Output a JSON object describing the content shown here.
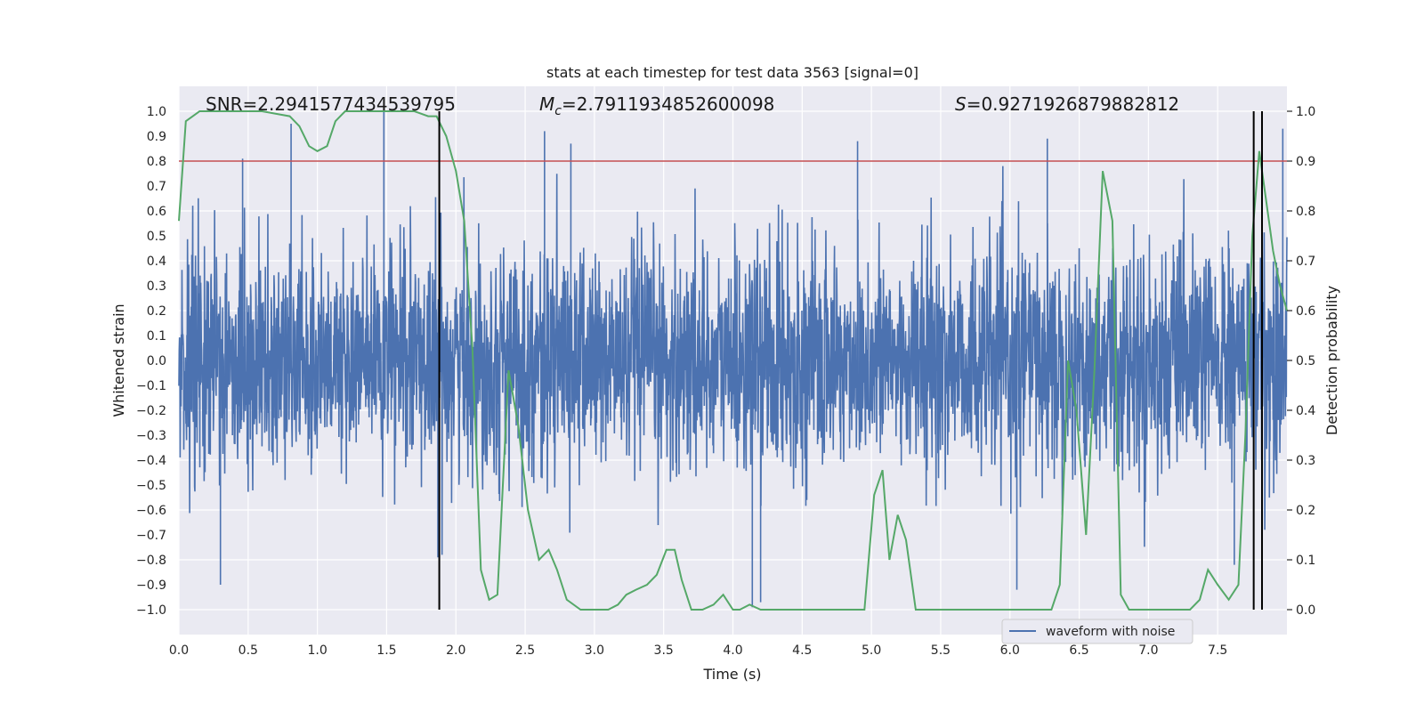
{
  "chart_data": {
    "type": "line",
    "title": "stats at each timestep for test data 3563 [signal=0]",
    "xlabel": "Time (s)",
    "ylabel": "Whitened strain",
    "ylabel_right": "Detection probability",
    "xlim": [
      0.0,
      8.0
    ],
    "ylim": [
      -1.1,
      1.1
    ],
    "ylim_right": [
      -0.05,
      1.05
    ],
    "x_ticks": [
      "0.0",
      "0.5",
      "1.0",
      "1.5",
      "2.0",
      "2.5",
      "3.0",
      "3.5",
      "4.0",
      "4.5",
      "5.0",
      "5.5",
      "6.0",
      "6.5",
      "7.0",
      "7.5"
    ],
    "x_tick_values": [
      0.0,
      0.5,
      1.0,
      1.5,
      2.0,
      2.5,
      3.0,
      3.5,
      4.0,
      4.5,
      5.0,
      5.5,
      6.0,
      6.5,
      7.0,
      7.5
    ],
    "y_ticks": [
      "1.0",
      "0.9",
      "0.8",
      "0.7",
      "0.6",
      "0.5",
      "0.4",
      "0.3",
      "0.2",
      "0.1",
      "0.0",
      "−0.1",
      "−0.2",
      "−0.3",
      "−0.4",
      "−0.5",
      "−0.6",
      "−0.7",
      "−0.8",
      "−0.9",
      "−1.0"
    ],
    "y_tick_values": [
      1.0,
      0.9,
      0.8,
      0.7,
      0.6,
      0.5,
      0.4,
      0.3,
      0.2,
      0.1,
      0.0,
      -0.1,
      -0.2,
      -0.3,
      -0.4,
      -0.5,
      -0.6,
      -0.7,
      -0.8,
      -0.9,
      -1.0
    ],
    "y_right_ticks": [
      "1.0",
      "0.9",
      "0.8",
      "0.7",
      "0.6",
      "0.5",
      "0.4",
      "0.3",
      "0.2",
      "0.1",
      "0.0"
    ],
    "y_right_tick_values": [
      1.0,
      0.9,
      0.8,
      0.7,
      0.6,
      0.5,
      0.4,
      0.3,
      0.2,
      0.1,
      0.0
    ],
    "annotations": {
      "snr": "SNR=2.2941577434539795",
      "mc_symbol": "M",
      "mc_sub": "c",
      "mc_value": "=2.7911934852600098",
      "s_symbol": "S",
      "s_value": "=0.9271926879882812"
    },
    "threshold": 0.8,
    "vertical_lines_x": [
      1.88,
      7.76,
      7.82
    ],
    "series": [
      {
        "name": "waveform with noise",
        "color": "#4c72b0",
        "kind": "noise",
        "sample_rate_hz": 2048,
        "envelope_typical": 0.4,
        "notable_peaks": [
          {
            "x": 0.81,
            "y": 0.95
          },
          {
            "x": 1.48,
            "y": 1.0
          },
          {
            "x": 0.46,
            "y": 0.81
          },
          {
            "x": 2.64,
            "y": 0.92
          },
          {
            "x": 2.83,
            "y": 0.87
          },
          {
            "x": 4.9,
            "y": 0.88
          },
          {
            "x": 6.27,
            "y": 0.89
          },
          {
            "x": 7.97,
            "y": 0.93
          },
          {
            "x": 0.3,
            "y": -0.9
          },
          {
            "x": 4.14,
            "y": -0.99
          },
          {
            "x": 4.2,
            "y": -0.97
          },
          {
            "x": 6.05,
            "y": -0.92
          },
          {
            "x": 7.62,
            "y": -0.82
          },
          {
            "x": 1.87,
            "y": -0.79
          }
        ]
      },
      {
        "name": "detection probability",
        "color": "#55a868",
        "axis": "right",
        "x": [
          0.0,
          0.05,
          0.1,
          0.15,
          0.25,
          0.4,
          0.6,
          0.8,
          0.87,
          0.94,
          1.0,
          1.07,
          1.13,
          1.2,
          1.3,
          1.5,
          1.7,
          1.8,
          1.86,
          1.93,
          2.0,
          2.06,
          2.12,
          2.18,
          2.24,
          2.3,
          2.38,
          2.45,
          2.52,
          2.6,
          2.67,
          2.73,
          2.8,
          2.9,
          3.0,
          3.1,
          3.17,
          3.23,
          3.3,
          3.38,
          3.45,
          3.52,
          3.58,
          3.63,
          3.7,
          3.78,
          3.86,
          3.93,
          4.0,
          4.05,
          4.12,
          4.2,
          4.3,
          4.5,
          4.6,
          4.7,
          4.8,
          4.9,
          4.95,
          5.02,
          5.08,
          5.13,
          5.19,
          5.25,
          5.32,
          5.4,
          5.5,
          5.7,
          6.0,
          6.3,
          6.36,
          6.42,
          6.48,
          6.55,
          6.61,
          6.67,
          6.74,
          6.8,
          6.86,
          6.93,
          7.0,
          7.1,
          7.2,
          7.3,
          7.37,
          7.43,
          7.5,
          7.58,
          7.65,
          7.7,
          7.75,
          7.8,
          7.85,
          7.9,
          7.95,
          8.0
        ],
        "y": [
          0.78,
          0.98,
          0.99,
          1.0,
          1.0,
          1.0,
          1.0,
          0.99,
          0.97,
          0.93,
          0.92,
          0.93,
          0.98,
          1.0,
          1.0,
          1.0,
          1.0,
          0.99,
          0.99,
          0.95,
          0.88,
          0.78,
          0.52,
          0.08,
          0.02,
          0.03,
          0.48,
          0.37,
          0.2,
          0.1,
          0.12,
          0.08,
          0.02,
          0.0,
          0.0,
          0.0,
          0.01,
          0.03,
          0.04,
          0.05,
          0.07,
          0.12,
          0.12,
          0.06,
          0.0,
          0.0,
          0.01,
          0.03,
          0.0,
          0.0,
          0.01,
          0.0,
          0.0,
          0.0,
          0.0,
          0.0,
          0.0,
          0.0,
          0.0,
          0.23,
          0.28,
          0.1,
          0.19,
          0.14,
          0.0,
          0.0,
          0.0,
          0.0,
          0.0,
          0.0,
          0.05,
          0.5,
          0.4,
          0.15,
          0.48,
          0.88,
          0.78,
          0.03,
          0.0,
          0.0,
          0.0,
          0.0,
          0.0,
          0.0,
          0.02,
          0.08,
          0.05,
          0.02,
          0.05,
          0.35,
          0.75,
          0.92,
          0.82,
          0.72,
          0.65,
          0.6
        ]
      }
    ],
    "legend": {
      "label": "waveform with noise",
      "position": "lower-right"
    }
  },
  "colors": {
    "plot_bg": "#eaeaf2",
    "grid": "#ffffff",
    "noise": "#4c72b0",
    "prob": "#55a868",
    "threshold": "#c44e52",
    "vline": "#000000"
  }
}
